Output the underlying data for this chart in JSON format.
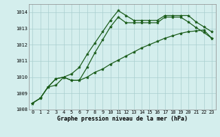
{
  "x": [
    0,
    1,
    2,
    3,
    4,
    5,
    6,
    7,
    8,
    9,
    10,
    11,
    12,
    13,
    14,
    15,
    16,
    17,
    18,
    19,
    20,
    21,
    22,
    23
  ],
  "line1": [
    1008.4,
    1008.7,
    1009.4,
    1009.5,
    1010.0,
    1010.2,
    1010.6,
    1011.4,
    1012.1,
    1012.8,
    1013.5,
    1014.1,
    1013.8,
    1013.5,
    1013.5,
    1013.5,
    1013.5,
    1013.8,
    1013.8,
    1013.8,
    1013.8,
    1013.4,
    1013.1,
    1012.8
  ],
  "line2": [
    1008.4,
    1008.7,
    1009.4,
    1009.9,
    1010.0,
    1009.8,
    1009.8,
    1010.6,
    1011.5,
    1012.3,
    1013.1,
    1013.7,
    1013.35,
    1013.35,
    1013.35,
    1013.35,
    1013.35,
    1013.7,
    1013.7,
    1013.7,
    1013.4,
    1013.05,
    1012.75,
    1012.4
  ],
  "line3": [
    1008.4,
    1008.7,
    1009.4,
    1009.9,
    1010.0,
    1009.8,
    1009.8,
    1010.0,
    1010.3,
    1010.5,
    1010.8,
    1011.05,
    1011.3,
    1011.55,
    1011.8,
    1012.0,
    1012.2,
    1012.4,
    1012.55,
    1012.7,
    1012.8,
    1012.85,
    1012.9,
    1012.4
  ],
  "ylim": [
    1008,
    1014.5
  ],
  "yticks": [
    1008,
    1009,
    1010,
    1011,
    1012,
    1013,
    1014
  ],
  "xlim": [
    -0.5,
    23.5
  ],
  "bg_color": "#d4eeed",
  "line_color": "#1a5c1a",
  "grid_color": "#a8cece",
  "xlabel": "Graphe pression niveau de la mer (hPa)",
  "marker": "*",
  "linewidth": 0.9,
  "markersize": 3.0,
  "tick_fontsize": 5.0,
  "label_fontsize": 6.0
}
